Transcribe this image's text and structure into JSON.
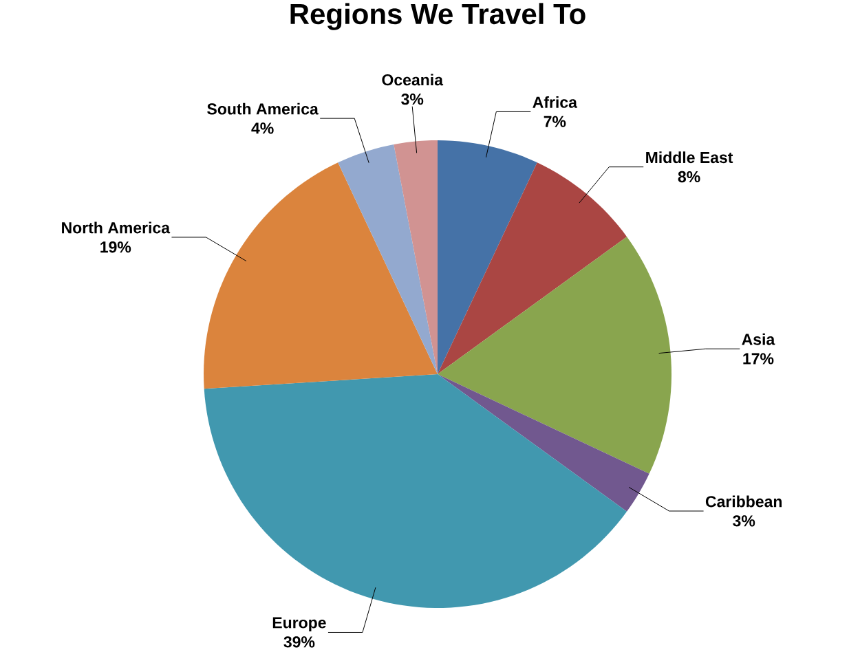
{
  "chart_data": {
    "type": "pie",
    "title": "Regions We Travel To",
    "categories": [
      "Africa",
      "Middle East",
      "Asia",
      "Caribbean",
      "Europe",
      "North America",
      "South America",
      "Oceania"
    ],
    "values": [
      7,
      8,
      17,
      3,
      39,
      19,
      4,
      3
    ],
    "value_labels": [
      "7%",
      "8%",
      "17%",
      "3%",
      "39%",
      "19%",
      "4%",
      "3%"
    ],
    "colors": [
      "#4572a7",
      "#aa4643",
      "#89a54e",
      "#71588f",
      "#4198af",
      "#db843d",
      "#93a9cf",
      "#d19392"
    ]
  }
}
